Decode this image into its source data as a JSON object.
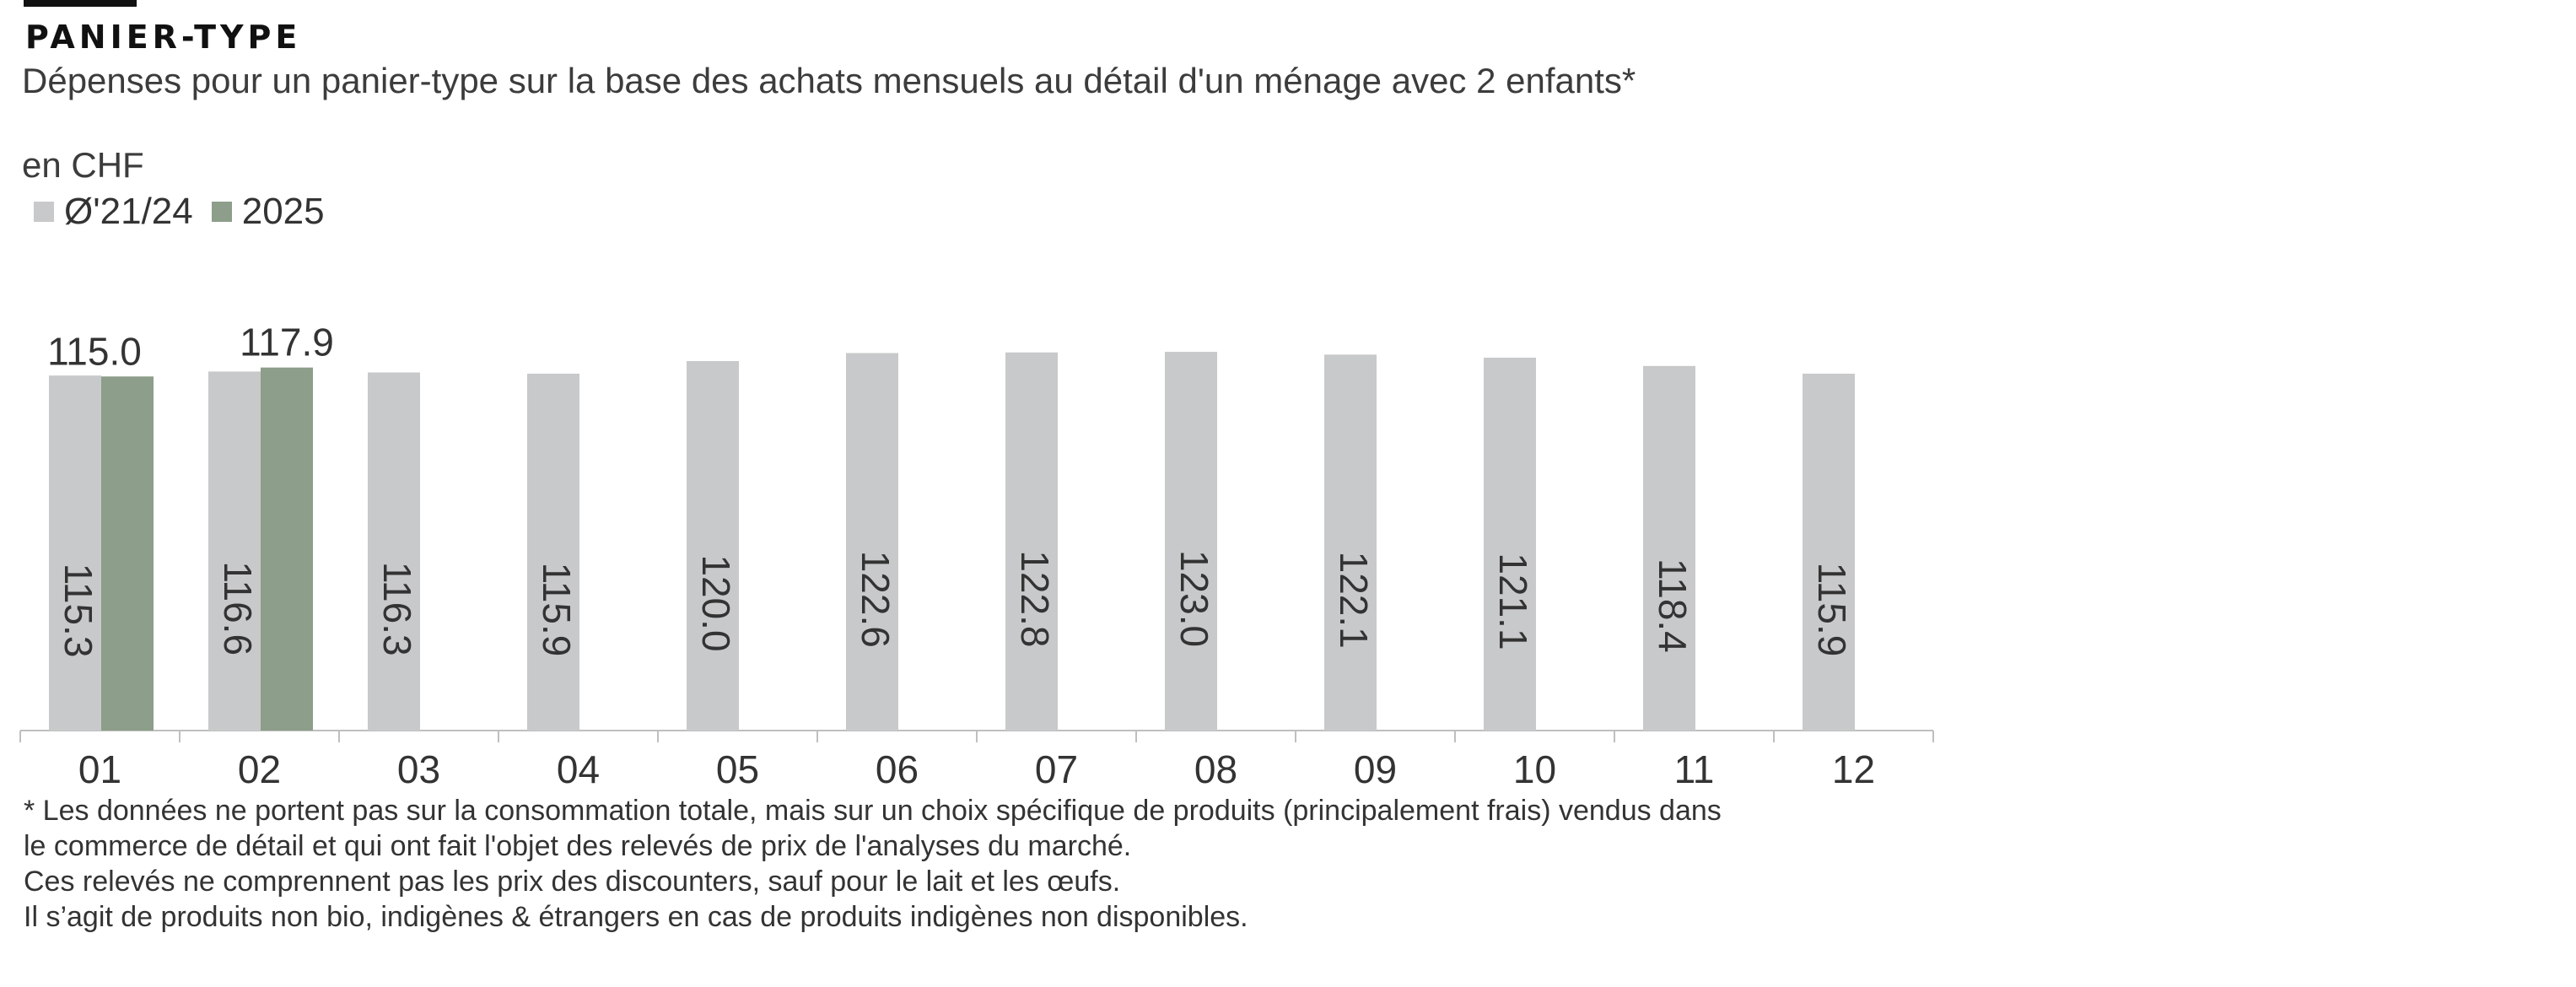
{
  "header": {
    "kicker": "PANIER-TYPE",
    "subtitle": "Dépenses pour un panier-type sur la base des achats mensuels au détail d'un ménage avec 2 enfants*",
    "unit": "en CHF"
  },
  "colors": {
    "avg_series": "#c8c9ca",
    "current_series": "#8d9e8b",
    "axis": "#bfbfbf",
    "rule": "#111111"
  },
  "chart_data": {
    "type": "bar",
    "categories": [
      "01",
      "02",
      "03",
      "04",
      "05",
      "06",
      "07",
      "08",
      "09",
      "10",
      "11",
      "12"
    ],
    "series": [
      {
        "name": "Ø'21/24",
        "values": [
          115.3,
          116.6,
          116.3,
          115.9,
          120.0,
          122.6,
          122.8,
          123.0,
          122.1,
          121.1,
          118.4,
          115.9
        ]
      },
      {
        "name": "2025",
        "values": [
          115.0,
          117.9,
          null,
          null,
          null,
          null,
          null,
          null,
          null,
          null,
          null,
          null
        ]
      }
    ],
    "ylim": [
      0,
      130
    ],
    "grid": false,
    "legend": "top-left",
    "value_labels": {
      "Ø'21/24": "inside-bar-rotated",
      "2025": "above-bar"
    }
  },
  "footnote": [
    "* Les données ne portent pas sur la consommation totale, mais sur un choix spécifique de produits (principalement frais) vendus dans",
    "le commerce de détail et qui ont fait l'objet des relevés de prix de l'analyses du marché.",
    "Ces relevés ne comprennent pas les prix des discounters, sauf pour le lait et les œufs.",
    "Il s’agit de produits non bio, indigènes & étrangers en cas de produits indigènes non disponibles."
  ]
}
